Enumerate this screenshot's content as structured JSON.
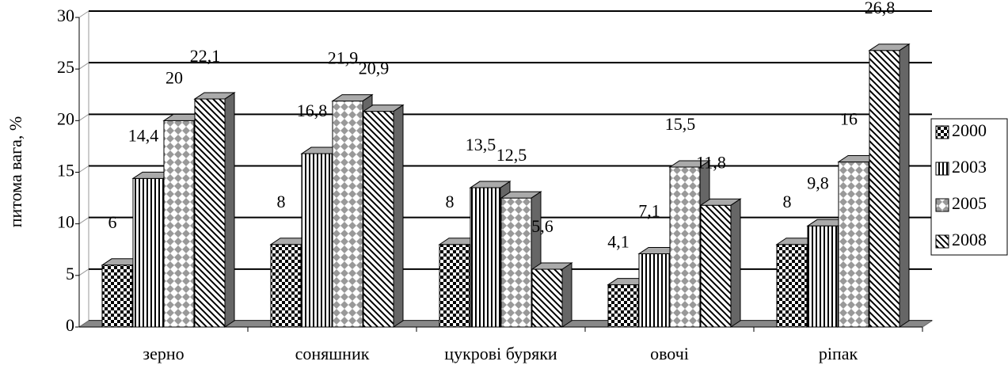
{
  "chart_data": {
    "type": "bar3d",
    "y_label": "питома вага, %",
    "categories": [
      "зерно",
      "соняшник",
      "цукрові буряки",
      "овочі",
      "ріпак"
    ],
    "series": [
      {
        "name": "2000",
        "color": "#000000",
        "values": [
          6,
          8,
          8,
          4.1,
          8
        ],
        "value_labels": [
          "6",
          "8",
          "8",
          "4,1",
          "8"
        ]
      },
      {
        "name": "2003",
        "color": "#000000",
        "values": [
          14.4,
          16.8,
          13.5,
          7.1,
          9.8
        ],
        "value_labels": [
          "14,4",
          "16,8",
          "13,5",
          "7,1",
          "9,8"
        ]
      },
      {
        "name": "2005",
        "color": "#999999",
        "values": [
          20,
          21.9,
          12.5,
          15.5,
          16
        ],
        "value_labels": [
          "20",
          "21,9",
          "12,5",
          "15,5",
          "16"
        ]
      },
      {
        "name": "2008",
        "color": "#000000",
        "values": [
          22.1,
          20.9,
          5.6,
          11.8,
          26.8
        ],
        "value_labels": [
          "22,1",
          "20,9",
          "5,6",
          "11,8",
          "26,8"
        ]
      }
    ],
    "ylim": [
      0,
      30
    ],
    "yticks": [
      0,
      5,
      10,
      15,
      20,
      25,
      30
    ],
    "grid": true,
    "legend": "right"
  }
}
